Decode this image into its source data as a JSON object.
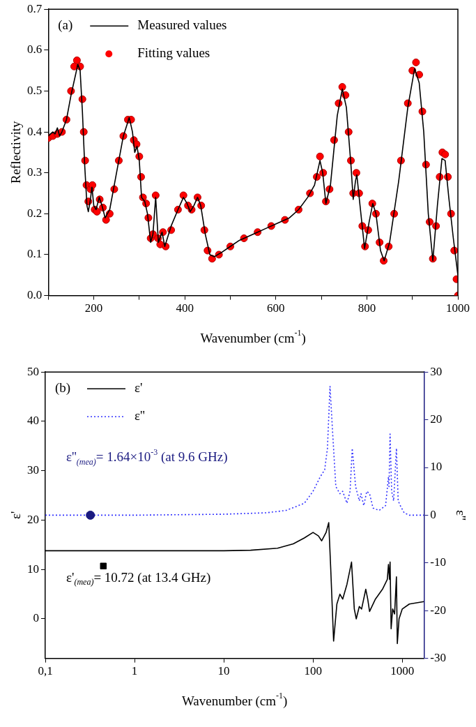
{
  "chart_data": [
    {
      "type": "line",
      "xlabel": "Wavenumber (cm$^{-1}$)",
      "ylabel": "Reflectivity",
      "xlim": [
        100,
        1000
      ],
      "ylim": [
        0,
        0.7
      ],
      "xticks": [
        {
          "value": 100,
          "label": null
        },
        200,
        {
          "value": 300,
          "label": null
        },
        400,
        {
          "value": 500,
          "label": null
        },
        600,
        {
          "value": 700,
          "label": null
        },
        800,
        {
          "value": 900,
          "label": null
        },
        1000
      ],
      "yticks": [
        {
          "value": 0,
          "label": "0.0"
        },
        0.1,
        0.2,
        0.3,
        0.4,
        0.5,
        0.6,
        0.7
      ],
      "legend": "top left",
      "annotations": [
        "(a)"
      ],
      "series": [
        {
          "name": "Measured values",
          "type": "line",
          "color": "#000000",
          "marker": "none",
          "x": [
            100,
            110,
            115,
            120,
            125,
            130,
            140,
            150,
            160,
            165,
            170,
            175,
            180,
            185,
            188,
            192,
            196,
            200,
            205,
            212,
            218,
            225,
            235,
            250,
            265,
            278,
            285,
            290,
            295,
            300,
            305,
            312,
            318,
            325,
            330,
            336,
            342,
            350,
            356,
            370,
            385,
            397,
            405,
            412,
            420,
            428,
            435,
            445,
            455,
            465,
            480,
            500,
            520,
            550,
            580,
            600,
            630,
            650,
            670,
            685,
            697,
            703,
            710,
            720,
            735,
            746,
            755,
            765,
            770,
            775,
            778,
            785,
            795,
            805,
            813,
            820,
            830,
            838,
            850,
            870,
            890,
            905,
            915,
            925,
            935,
            945,
            955,
            965,
            972,
            980,
            990,
            1000
          ],
          "values": [
            0.39,
            0.4,
            0.395,
            0.41,
            0.39,
            0.4,
            0.43,
            0.49,
            0.54,
            0.565,
            0.55,
            0.45,
            0.32,
            0.22,
            0.205,
            0.23,
            0.265,
            0.22,
            0.21,
            0.24,
            0.22,
            0.19,
            0.21,
            0.3,
            0.39,
            0.435,
            0.4,
            0.35,
            0.365,
            0.33,
            0.24,
            0.23,
            0.2,
            0.13,
            0.15,
            0.24,
            0.13,
            0.155,
            0.12,
            0.17,
            0.21,
            0.24,
            0.225,
            0.205,
            0.22,
            0.24,
            0.22,
            0.15,
            0.1,
            0.095,
            0.105,
            0.12,
            0.135,
            0.15,
            0.165,
            0.175,
            0.19,
            0.21,
            0.24,
            0.27,
            0.33,
            0.3,
            0.225,
            0.27,
            0.44,
            0.505,
            0.46,
            0.32,
            0.235,
            0.28,
            0.295,
            0.22,
            0.115,
            0.18,
            0.225,
            0.2,
            0.11,
            0.085,
            0.13,
            0.28,
            0.46,
            0.555,
            0.52,
            0.4,
            0.2,
            0.085,
            0.22,
            0.335,
            0.33,
            0.24,
            0.14,
            0.05
          ]
        },
        {
          "name": "Fitting values",
          "type": "scatter",
          "color": "#ff0000",
          "marker": "circle",
          "x": [
            100,
            110,
            120,
            130,
            140,
            150,
            157,
            163,
            170,
            175,
            178,
            181,
            184,
            188,
            193,
            197,
            202,
            207,
            213,
            220,
            227,
            235,
            245,
            255,
            265,
            275,
            282,
            288,
            294,
            300,
            304,
            308,
            315,
            320,
            325,
            330,
            336,
            341,
            346,
            352,
            358,
            370,
            385,
            397,
            407,
            415,
            428,
            436,
            443,
            450,
            460,
            475,
            500,
            530,
            560,
            590,
            620,
            650,
            675,
            690,
            697,
            704,
            710,
            718,
            728,
            738,
            746,
            753,
            760,
            765,
            770,
            777,
            783,
            790,
            796,
            803,
            812,
            820,
            828,
            837,
            848,
            860,
            875,
            890,
            900,
            908,
            915,
            922,
            930,
            938,
            945,
            952,
            960,
            966,
            972,
            978,
            985,
            992,
            997,
            1000
          ],
          "values": [
            0.385,
            0.39,
            0.395,
            0.4,
            0.43,
            0.5,
            0.56,
            0.575,
            0.56,
            0.48,
            0.4,
            0.33,
            0.27,
            0.23,
            0.26,
            0.27,
            0.21,
            0.205,
            0.235,
            0.215,
            0.185,
            0.2,
            0.26,
            0.33,
            0.39,
            0.43,
            0.43,
            0.38,
            0.37,
            0.34,
            0.29,
            0.24,
            0.225,
            0.19,
            0.14,
            0.15,
            0.245,
            0.14,
            0.125,
            0.155,
            0.12,
            0.16,
            0.21,
            0.245,
            0.22,
            0.21,
            0.24,
            0.22,
            0.16,
            0.11,
            0.09,
            0.1,
            0.12,
            0.14,
            0.155,
            0.17,
            0.185,
            0.21,
            0.25,
            0.29,
            0.34,
            0.3,
            0.23,
            0.26,
            0.38,
            0.47,
            0.51,
            0.49,
            0.4,
            0.33,
            0.25,
            0.3,
            0.25,
            0.17,
            0.12,
            0.16,
            0.225,
            0.2,
            0.13,
            0.085,
            0.12,
            0.2,
            0.33,
            0.47,
            0.55,
            0.57,
            0.54,
            0.45,
            0.32,
            0.18,
            0.09,
            0.17,
            0.29,
            0.35,
            0.345,
            0.29,
            0.2,
            0.11,
            0.04,
            0.0
          ]
        }
      ]
    },
    {
      "type": "line",
      "xlabel": "Wavenumber (cm$^{-1}$)",
      "ylabel": "ε'",
      "y2label": "ε''",
      "log": "x",
      "xlim": [
        0.1,
        1750
      ],
      "ylim": [
        -8,
        50
      ],
      "y2lim": [
        -30,
        30
      ],
      "xticks": [
        {
          "value": 0.1,
          "label": "0,1"
        },
        1,
        10,
        100,
        1000
      ],
      "yticks": [
        0,
        10,
        20,
        30,
        40,
        50
      ],
      "y2ticks": [
        -30,
        -20,
        -10,
        0,
        10,
        20,
        30
      ],
      "legend": "top left",
      "annotations": [
        "(b)",
        "ε''$_{(mea)}$= 1.64×10$^{-3}$ (at 9.6 GHz)",
        "ε'$_{(mea)}$= 10.72 (at 13.4 GHz)"
      ],
      "series": [
        {
          "name": "ε'",
          "type": "line",
          "color": "#000000",
          "line_style": "solid",
          "x": [
            0.1,
            1,
            10,
            20,
            40,
            60,
            80,
            100,
            115,
            125,
            140,
            150,
            158,
            170,
            185,
            200,
            215,
            240,
            270,
            290,
            305,
            330,
            350,
            390,
            410,
            430,
            500,
            600,
            680,
            700,
            720,
            730,
            750,
            780,
            820,
            860,
            880,
            920,
            1000,
            1200,
            1750
          ],
          "values": [
            13.8,
            13.8,
            13.8,
            13.9,
            14.3,
            15.2,
            16.4,
            17.5,
            16.8,
            15.8,
            17.5,
            19.5,
            10,
            -4.5,
            3,
            5,
            4,
            7,
            11.5,
            2,
            0,
            2.5,
            2,
            6,
            4,
            1.5,
            4,
            6,
            8,
            11,
            8,
            11.5,
            -2,
            2,
            1,
            8.5,
            -5,
            0,
            2,
            3,
            3.5
          ]
        },
        {
          "name": "ε''",
          "type": "line",
          "axis": "y2",
          "color": "#3333ff",
          "line_style": "dotted",
          "x": [
            0.1,
            1,
            10,
            30,
            50,
            80,
            100,
            120,
            135,
            145,
            155,
            165,
            180,
            200,
            215,
            240,
            260,
            275,
            300,
            330,
            345,
            370,
            400,
            430,
            470,
            550,
            650,
            700,
            710,
            730,
            760,
            800,
            860,
            900,
            950,
            1050,
            1200,
            1750
          ],
          "values": [
            0,
            0,
            0.2,
            0.5,
            1,
            2.5,
            5,
            8,
            9.5,
            14,
            27,
            18,
            6,
            4.5,
            5,
            2.5,
            5,
            14,
            6,
            3,
            4.5,
            2,
            5,
            4.5,
            1.5,
            1,
            2,
            8,
            6,
            17,
            5,
            3,
            14,
            3,
            2,
            0.5,
            0,
            0
          ]
        },
        {
          "type": "scatter",
          "axis": "y2",
          "color": "#1a1a80",
          "marker": "circle",
          "x": [
            0.32
          ],
          "values": [
            0
          ]
        },
        {
          "type": "scatter",
          "color": "#000000",
          "marker": "square",
          "x": [
            0.447
          ],
          "values": [
            10.7
          ]
        }
      ]
    }
  ]
}
